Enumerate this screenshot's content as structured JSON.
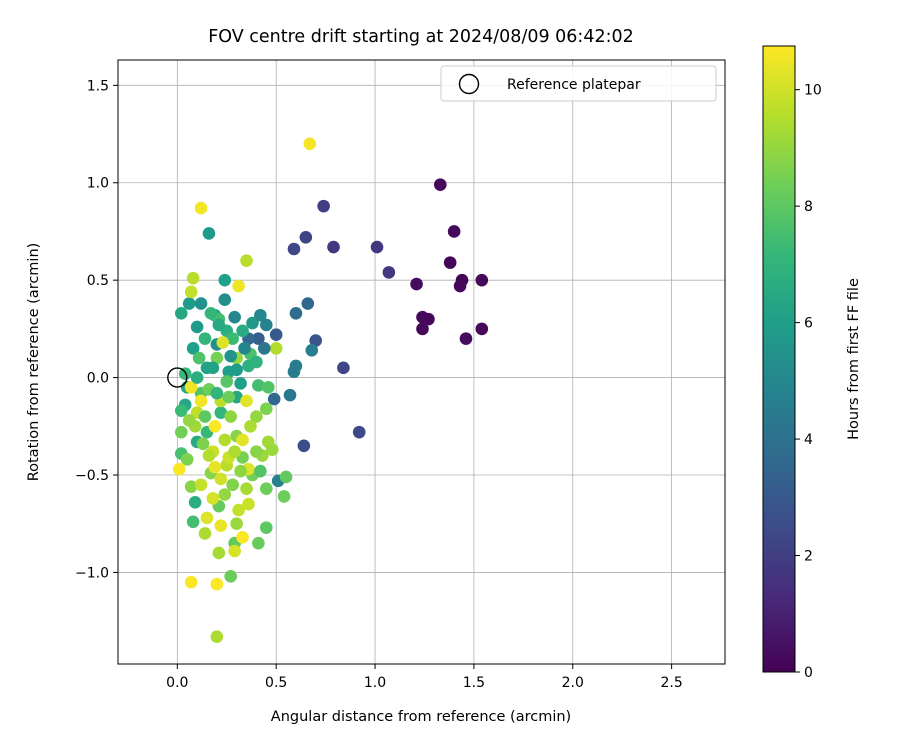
{
  "chart_data": {
    "type": "scatter",
    "title": "FOV centre drift starting at 2024/08/09 06:42:02",
    "xlabel": "Angular distance from reference (arcmin)",
    "ylabel": "Rotation from reference (arcmin)",
    "xlim": [
      -0.3,
      2.77
    ],
    "ylim": [
      -1.47,
      1.63
    ],
    "xticks": [
      0.0,
      0.5,
      1.0,
      1.5,
      2.0,
      2.5
    ],
    "xtick_labels": [
      "0.0",
      "0.5",
      "1.0",
      "1.5",
      "2.0",
      "2.5"
    ],
    "yticks": [
      -1.0,
      -0.5,
      0.0,
      0.5,
      1.0,
      1.5
    ],
    "ytick_labels": [
      "−1.0",
      "−0.5",
      "0.0",
      "0.5",
      "1.0",
      "1.5"
    ],
    "grid": true,
    "legend": {
      "placement": "upper right",
      "label": "Reference platepar",
      "marker": "open circle"
    },
    "reference_point": {
      "x": 0.0,
      "y": 0.0
    },
    "colorbar": {
      "label": "Hours from first FF file",
      "min": 0,
      "max": 10.75,
      "ticks": [
        0,
        2,
        4,
        6,
        8,
        10
      ],
      "tick_labels": [
        "0",
        "2",
        "4",
        "6",
        "8",
        "10"
      ],
      "colormap": "viridis",
      "colors": [
        "#440154",
        "#482878",
        "#3e4989",
        "#31688e",
        "#26828e",
        "#1f9e89",
        "#35b779",
        "#6ece58",
        "#b5de2b",
        "#fde725"
      ]
    },
    "points": [
      {
        "x": 1.38,
        "y": 0.59,
        "t": 0.1
      },
      {
        "x": 1.44,
        "y": 0.5,
        "t": 0.1
      },
      {
        "x": 1.33,
        "y": 0.99,
        "t": 0.2
      },
      {
        "x": 1.4,
        "y": 0.75,
        "t": 0.2
      },
      {
        "x": 1.54,
        "y": 0.5,
        "t": 0.2
      },
      {
        "x": 1.43,
        "y": 0.47,
        "t": 0.2
      },
      {
        "x": 1.21,
        "y": 0.48,
        "t": 0.3
      },
      {
        "x": 1.24,
        "y": 0.31,
        "t": 0.2
      },
      {
        "x": 1.27,
        "y": 0.3,
        "t": 0.2
      },
      {
        "x": 1.24,
        "y": 0.25,
        "t": 0.2
      },
      {
        "x": 1.54,
        "y": 0.25,
        "t": 0.2
      },
      {
        "x": 1.46,
        "y": 0.2,
        "t": 0.3
      },
      {
        "x": 1.01,
        "y": 0.67,
        "t": 1.7
      },
      {
        "x": 1.07,
        "y": 0.54,
        "t": 1.8
      },
      {
        "x": 0.74,
        "y": 0.88,
        "t": 2.0
      },
      {
        "x": 0.79,
        "y": 0.67,
        "t": 1.7
      },
      {
        "x": 0.65,
        "y": 0.72,
        "t": 2.2
      },
      {
        "x": 0.59,
        "y": 0.66,
        "t": 2.3
      },
      {
        "x": 0.84,
        "y": 0.05,
        "t": 2.3
      },
      {
        "x": 0.92,
        "y": -0.28,
        "t": 2.4
      },
      {
        "x": 0.64,
        "y": -0.35,
        "t": 2.6
      },
      {
        "x": 0.7,
        "y": 0.19,
        "t": 2.8
      },
      {
        "x": 0.5,
        "y": 0.22,
        "t": 3.0
      },
      {
        "x": 0.41,
        "y": 0.2,
        "t": 3.2
      },
      {
        "x": 0.36,
        "y": 0.2,
        "t": 3.6
      },
      {
        "x": 0.66,
        "y": 0.38,
        "t": 3.6
      },
      {
        "x": 0.6,
        "y": 0.33,
        "t": 3.8
      },
      {
        "x": 0.49,
        "y": -0.11,
        "t": 3.6
      },
      {
        "x": 0.57,
        "y": -0.09,
        "t": 4.3
      },
      {
        "x": 0.6,
        "y": 0.06,
        "t": 4.5
      },
      {
        "x": 0.59,
        "y": 0.03,
        "t": 4.5
      },
      {
        "x": 0.68,
        "y": 0.14,
        "t": 4.6
      },
      {
        "x": 0.51,
        "y": -0.53,
        "t": 4.7
      },
      {
        "x": 0.45,
        "y": 0.27,
        "t": 4.8
      },
      {
        "x": 0.42,
        "y": 0.32,
        "t": 5.0
      },
      {
        "x": 0.29,
        "y": 0.31,
        "t": 5.0
      },
      {
        "x": 0.24,
        "y": 0.4,
        "t": 5.3
      },
      {
        "x": 0.12,
        "y": 0.38,
        "t": 5.4
      },
      {
        "x": 0.2,
        "y": 0.17,
        "t": 5.3
      },
      {
        "x": 0.16,
        "y": 0.74,
        "t": 5.9
      },
      {
        "x": 0.24,
        "y": 0.5,
        "t": 6.1
      },
      {
        "x": 0.19,
        "y": 0.32,
        "t": 6.2
      },
      {
        "x": 0.1,
        "y": 0.26,
        "t": 5.8
      },
      {
        "x": 0.06,
        "y": 0.38,
        "t": 5.9
      },
      {
        "x": 0.02,
        "y": 0.33,
        "t": 6.4
      },
      {
        "x": 0.08,
        "y": 0.15,
        "t": 6.0
      },
      {
        "x": 0.15,
        "y": 0.05,
        "t": 6.1
      },
      {
        "x": 0.05,
        "y": -0.05,
        "t": 6.3
      },
      {
        "x": 0.04,
        "y": -0.14,
        "t": 6.4
      },
      {
        "x": 0.26,
        "y": 0.03,
        "t": 6.0
      },
      {
        "x": 0.32,
        "y": -0.03,
        "t": 6.0
      },
      {
        "x": 0.3,
        "y": -0.1,
        "t": 6.4
      },
      {
        "x": 0.1,
        "y": -0.33,
        "t": 6.5
      },
      {
        "x": 0.09,
        "y": -0.64,
        "t": 6.7
      },
      {
        "x": 0.25,
        "y": 0.24,
        "t": 6.8
      },
      {
        "x": 0.36,
        "y": 0.06,
        "t": 6.8
      },
      {
        "x": 0.22,
        "y": -0.18,
        "t": 7.0
      },
      {
        "x": 0.15,
        "y": -0.28,
        "t": 7.2
      },
      {
        "x": 0.08,
        "y": -0.74,
        "t": 7.5
      },
      {
        "x": 0.28,
        "y": 0.2,
        "t": 7.3
      },
      {
        "x": 0.02,
        "y": -0.17,
        "t": 7.3
      },
      {
        "x": 0.02,
        "y": -0.39,
        "t": 7.6
      },
      {
        "x": 0.37,
        "y": 0.12,
        "t": 7.6
      },
      {
        "x": 0.41,
        "y": -0.04,
        "t": 7.5
      },
      {
        "x": 0.46,
        "y": -0.05,
        "t": 7.8
      },
      {
        "x": 0.12,
        "y": -0.08,
        "t": 7.8
      },
      {
        "x": 0.21,
        "y": 0.3,
        "t": 7.5
      },
      {
        "x": 0.25,
        "y": -0.02,
        "t": 7.9
      },
      {
        "x": 0.29,
        "y": -0.85,
        "t": 8.1
      },
      {
        "x": 0.45,
        "y": -0.77,
        "t": 8.0
      },
      {
        "x": 0.41,
        "y": -0.85,
        "t": 8.2
      },
      {
        "x": 0.55,
        "y": -0.51,
        "t": 8.1
      },
      {
        "x": 0.54,
        "y": -0.61,
        "t": 8.3
      },
      {
        "x": 0.45,
        "y": -0.57,
        "t": 8.3
      },
      {
        "x": 0.38,
        "y": -0.5,
        "t": 8.4
      },
      {
        "x": 0.33,
        "y": -0.41,
        "t": 8.5
      },
      {
        "x": 0.27,
        "y": -1.02,
        "t": 8.3
      },
      {
        "x": 0.21,
        "y": -0.66,
        "t": 8.2
      },
      {
        "x": 0.13,
        "y": -0.34,
        "t": 8.6
      },
      {
        "x": 0.05,
        "y": -0.42,
        "t": 8.6
      },
      {
        "x": 0.07,
        "y": -0.56,
        "t": 8.8
      },
      {
        "x": 0.17,
        "y": -0.49,
        "t": 8.8
      },
      {
        "x": 0.3,
        "y": -0.3,
        "t": 8.8
      },
      {
        "x": 0.4,
        "y": -0.2,
        "t": 9.0
      },
      {
        "x": 0.43,
        "y": -0.4,
        "t": 9.1
      },
      {
        "x": 0.46,
        "y": -0.33,
        "t": 9.2
      },
      {
        "x": 0.3,
        "y": -0.75,
        "t": 9.1
      },
      {
        "x": 0.21,
        "y": -0.9,
        "t": 9.3
      },
      {
        "x": 0.2,
        "y": -1.33,
        "t": 9.4
      },
      {
        "x": 0.14,
        "y": -0.8,
        "t": 9.4
      },
      {
        "x": 0.35,
        "y": 0.6,
        "t": 9.6
      },
      {
        "x": 0.08,
        "y": 0.51,
        "t": 9.6
      },
      {
        "x": 0.07,
        "y": 0.44,
        "t": 9.8
      },
      {
        "x": 0.25,
        "y": -0.45,
        "t": 9.6
      },
      {
        "x": 0.1,
        "y": -0.18,
        "t": 9.7
      },
      {
        "x": 0.36,
        "y": -0.65,
        "t": 9.9
      },
      {
        "x": 0.29,
        "y": -0.89,
        "t": 10.1
      },
      {
        "x": 0.36,
        "y": -0.47,
        "t": 10.2
      },
      {
        "x": 0.33,
        "y": -0.32,
        "t": 10.3
      },
      {
        "x": 0.18,
        "y": -0.62,
        "t": 10.1
      },
      {
        "x": 0.15,
        "y": -0.72,
        "t": 10.2
      },
      {
        "x": 0.22,
        "y": -0.76,
        "t": 10.4
      },
      {
        "x": 0.19,
        "y": -0.46,
        "t": 10.4
      },
      {
        "x": 0.23,
        "y": 0.18,
        "t": 10.2
      },
      {
        "x": 0.35,
        "y": -0.12,
        "t": 10.3
      },
      {
        "x": 0.31,
        "y": 0.47,
        "t": 10.5
      },
      {
        "x": 0.67,
        "y": 1.2,
        "t": 10.6
      },
      {
        "x": 0.12,
        "y": 0.87,
        "t": 10.6
      },
      {
        "x": 0.07,
        "y": -0.05,
        "t": 10.5
      },
      {
        "x": 0.12,
        "y": -0.12,
        "t": 10.6
      },
      {
        "x": 0.01,
        "y": -0.47,
        "t": 10.7
      },
      {
        "x": 0.07,
        "y": -1.05,
        "t": 10.7
      },
      {
        "x": 0.2,
        "y": -1.06,
        "t": 10.7
      },
      {
        "x": 0.33,
        "y": -0.82,
        "t": 10.7
      },
      {
        "x": 0.19,
        "y": -0.25,
        "t": 10.7
      },
      {
        "x": 0.3,
        "y": 0.1,
        "t": 9.0
      },
      {
        "x": 0.2,
        "y": 0.1,
        "t": 8.5
      },
      {
        "x": 0.14,
        "y": 0.2,
        "t": 7.0
      },
      {
        "x": 0.33,
        "y": 0.24,
        "t": 6.6
      },
      {
        "x": 0.38,
        "y": 0.28,
        "t": 5.7
      },
      {
        "x": 0.4,
        "y": 0.08,
        "t": 6.9
      },
      {
        "x": 0.27,
        "y": -0.2,
        "t": 8.9
      },
      {
        "x": 0.24,
        "y": -0.32,
        "t": 9.5
      },
      {
        "x": 0.18,
        "y": -0.38,
        "t": 9.9
      },
      {
        "x": 0.09,
        "y": -0.25,
        "t": 9.2
      },
      {
        "x": 0.02,
        "y": -0.28,
        "t": 8.4
      },
      {
        "x": 0.11,
        "y": 0.1,
        "t": 7.7
      },
      {
        "x": 0.16,
        "y": -0.06,
        "t": 8.3
      },
      {
        "x": 0.22,
        "y": -0.12,
        "t": 9.7
      },
      {
        "x": 0.37,
        "y": -0.25,
        "t": 9.4
      },
      {
        "x": 0.28,
        "y": -0.55,
        "t": 8.7
      },
      {
        "x": 0.24,
        "y": -0.6,
        "t": 9.0
      },
      {
        "x": 0.12,
        "y": -0.55,
        "t": 9.8
      },
      {
        "x": 0.16,
        "y": -0.4,
        "t": 9.5
      },
      {
        "x": 0.45,
        "y": -0.16,
        "t": 8.6
      },
      {
        "x": 0.5,
        "y": 0.15,
        "t": 9.5
      },
      {
        "x": 0.35,
        "y": -0.57,
        "t": 9.3
      },
      {
        "x": 0.31,
        "y": -0.68,
        "t": 9.8
      },
      {
        "x": 0.04,
        "y": 0.02,
        "t": 7.2
      },
      {
        "x": 0.1,
        "y": 0.0,
        "t": 6.7
      },
      {
        "x": 0.18,
        "y": 0.05,
        "t": 6.2
      },
      {
        "x": 0.27,
        "y": 0.11,
        "t": 5.5
      },
      {
        "x": 0.34,
        "y": 0.15,
        "t": 4.9
      },
      {
        "x": 0.44,
        "y": 0.15,
        "t": 4.2
      },
      {
        "x": 0.21,
        "y": 0.27,
        "t": 6.5
      },
      {
        "x": 0.17,
        "y": 0.33,
        "t": 7.1
      },
      {
        "x": 0.26,
        "y": -0.41,
        "t": 9.9
      },
      {
        "x": 0.22,
        "y": -0.52,
        "t": 10.0
      },
      {
        "x": 0.29,
        "y": -0.38,
        "t": 9.4
      },
      {
        "x": 0.4,
        "y": -0.38,
        "t": 8.8
      },
      {
        "x": 0.48,
        "y": -0.37,
        "t": 9.1
      },
      {
        "x": 0.06,
        "y": -0.22,
        "t": 9.0
      },
      {
        "x": 0.14,
        "y": -0.2,
        "t": 8.0
      },
      {
        "x": 0.42,
        "y": -0.48,
        "t": 7.8
      },
      {
        "x": 0.32,
        "y": -0.48,
        "t": 8.9
      },
      {
        "x": 0.26,
        "y": -0.1,
        "t": 8.3
      },
      {
        "x": 0.2,
        "y": -0.08,
        "t": 7.0
      },
      {
        "x": 0.3,
        "y": 0.04,
        "t": 5.9
      }
    ]
  }
}
